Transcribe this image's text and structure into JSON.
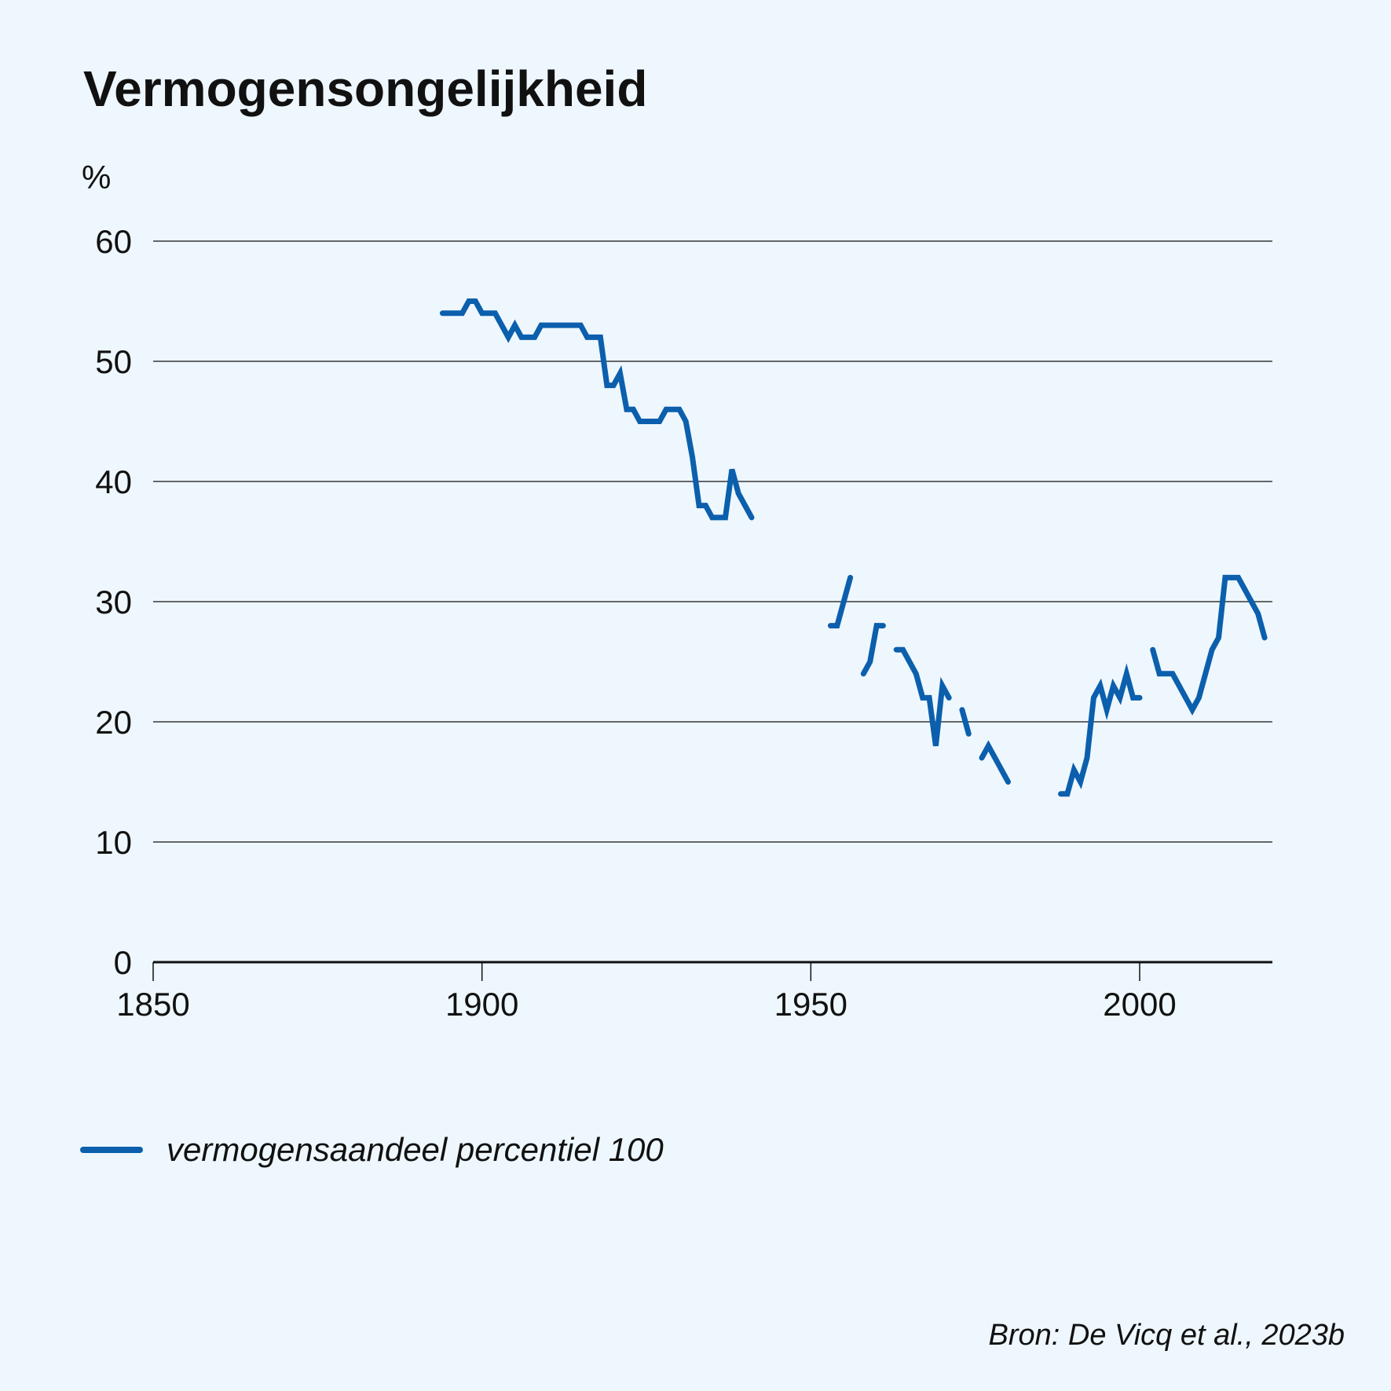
{
  "chart_data": {
    "type": "line",
    "title": "Vermogensongelijkheid",
    "ylabel": "%",
    "xlim": [
      1850,
      2020
    ],
    "ylim": [
      0,
      60
    ],
    "xticks": [
      "1850",
      "1900",
      "1950",
      "2000"
    ],
    "yticks": [
      "0",
      "10",
      "20",
      "30",
      "40",
      "50",
      "60"
    ],
    "grid": true,
    "legend_position": "bottom-left",
    "source": "Bron: De Vicq et al., 2023b",
    "series": [
      {
        "name": "vermogensaandeel percentiel 100",
        "color": "#0b5fad",
        "segments": [
          [
            [
              1894,
              54
            ],
            [
              1897,
              54
            ],
            [
              1898,
              55
            ],
            [
              1899,
              55
            ],
            [
              1900,
              54
            ],
            [
              1902,
              54
            ],
            [
              1904,
              52
            ],
            [
              1905,
              53
            ],
            [
              1906,
              52
            ],
            [
              1908,
              52
            ],
            [
              1909,
              53
            ],
            [
              1915,
              53
            ],
            [
              1916,
              52
            ],
            [
              1918,
              52
            ],
            [
              1919,
              48
            ],
            [
              1920,
              48
            ],
            [
              1921,
              49
            ],
            [
              1922,
              46
            ],
            [
              1923,
              46
            ],
            [
              1924,
              45
            ],
            [
              1927,
              45
            ],
            [
              1928,
              46
            ],
            [
              1930,
              46
            ],
            [
              1931,
              45
            ],
            [
              1932,
              42
            ],
            [
              1933,
              38
            ],
            [
              1934,
              38
            ],
            [
              1935,
              37
            ],
            [
              1937,
              37
            ],
            [
              1938,
              41
            ],
            [
              1939,
              39
            ],
            [
              1941,
              37
            ]
          ],
          [
            [
              1953,
              28
            ],
            [
              1954,
              28
            ],
            [
              1956,
              32
            ]
          ],
          [
            [
              1958,
              24
            ],
            [
              1959,
              25
            ],
            [
              1960,
              28
            ],
            [
              1961,
              28
            ]
          ],
          [
            [
              1963,
              26
            ],
            [
              1964,
              26
            ],
            [
              1966,
              24
            ],
            [
              1967,
              22
            ],
            [
              1968,
              22
            ],
            [
              1969,
              18
            ],
            [
              1970,
              23
            ],
            [
              1971,
              22
            ]
          ],
          [
            [
              1973,
              21
            ],
            [
              1974,
              19
            ]
          ],
          [
            [
              1976,
              17
            ],
            [
              1977,
              18
            ],
            [
              1980,
              15
            ]
          ],
          [
            [
              1988,
              14
            ],
            [
              1989,
              14
            ],
            [
              1990,
              16
            ],
            [
              1991,
              15
            ],
            [
              1992,
              17
            ],
            [
              1993,
              22
            ],
            [
              1994,
              23
            ],
            [
              1995,
              21
            ],
            [
              1996,
              23
            ],
            [
              1997,
              22
            ],
            [
              1998,
              24
            ],
            [
              1999,
              22
            ],
            [
              2000,
              22
            ]
          ],
          [
            [
              2002,
              26
            ],
            [
              2003,
              24
            ],
            [
              2005,
              24
            ],
            [
              2008,
              21
            ],
            [
              2009,
              22
            ],
            [
              2011,
              26
            ],
            [
              2012,
              27
            ],
            [
              2013,
              32
            ],
            [
              2015,
              32
            ],
            [
              2018,
              29
            ],
            [
              2019,
              27
            ]
          ]
        ]
      }
    ]
  }
}
